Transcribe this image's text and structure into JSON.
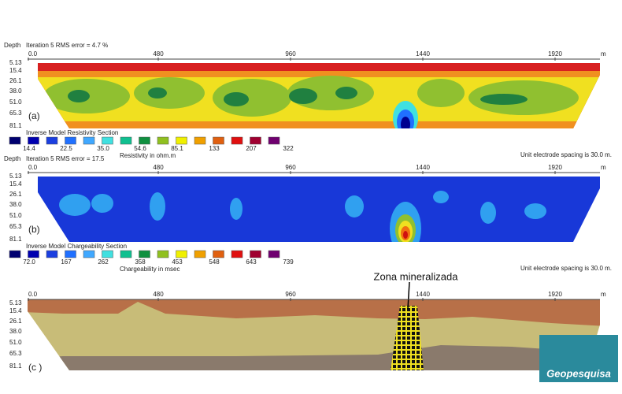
{
  "panels": [
    {
      "header": "Depth",
      "caption": "Iteration 5 RMS error = 4.7 %",
      "x_ticks": [
        "0.0",
        "480",
        "960",
        "1440",
        "1920"
      ],
      "x_unit": "m",
      "depths": [
        "5.13",
        "15.4",
        "26.1",
        "38.0",
        "51.0",
        "65.3",
        "81.1"
      ],
      "label": "(a)",
      "legend": {
        "title": "Inverse Model Resistivity Section",
        "values": [
          "14.4",
          "22.5",
          "35.0",
          "54.6",
          "85.1",
          "133",
          "207",
          "322"
        ],
        "quantity": "Resistivity in ohm.m",
        "note": "Unit electrode spacing is 30.0 m."
      }
    },
    {
      "header": "Depth",
      "caption": "Iteration 5 RMS error = 17.5",
      "x_ticks": [
        "0.0",
        "480",
        "960",
        "1440",
        "1920"
      ],
      "x_unit": "m",
      "depths": [
        "5.13",
        "15.4",
        "26.1",
        "38.0",
        "51.0",
        "65.3",
        "81.1"
      ],
      "label": "(b)",
      "legend": {
        "title": "Inverse Model Chargeability Section",
        "values": [
          "72.0",
          "167",
          "262",
          "358",
          "453",
          "548",
          "643",
          "739"
        ],
        "quantity": "Chargeability in msec",
        "note": "Unit electrode spacing is 30.0 m."
      }
    },
    {
      "x_ticks": [
        "0.0",
        "480",
        "960",
        "1440",
        "1920"
      ],
      "x_unit": "m",
      "depths": [
        "5.13",
        "15.4",
        "26.1",
        "38.0",
        "51.0",
        "65.3",
        "81.1"
      ],
      "label": "(c )",
      "annotation": "Zona mineralizada"
    }
  ],
  "logo": "Geopesquisa"
}
